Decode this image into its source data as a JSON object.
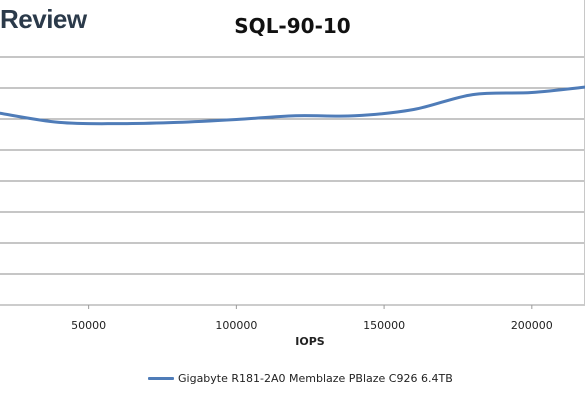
{
  "watermark": "Review",
  "chart_data": {
    "type": "line",
    "title": "SQL-90-10",
    "xlabel": "IOPS",
    "ylabel": "",
    "x_ticks": [
      50000,
      100000,
      150000,
      200000
    ],
    "x_tick_labels": [
      "50000",
      "100000",
      "150000",
      "200000"
    ],
    "xlim": [
      20000,
      218000
    ],
    "y_tick_labels": [],
    "grid": true,
    "legend_position": "bottom",
    "series": [
      {
        "name": "Gigabyte R181-2A0 Memblaze PBlaze C926 6.4TB",
        "color": "#4f7cb8",
        "x": [
          20000,
          40000,
          60000,
          80000,
          100000,
          120000,
          140000,
          160000,
          180000,
          200000,
          218000
        ],
        "y": [
          0.62,
          0.4,
          0.37,
          0.4,
          0.47,
          0.56,
          0.56,
          0.71,
          1.07,
          1.12,
          1.25
        ]
      }
    ],
    "ylim": [
      -4.0,
      2.0
    ]
  }
}
